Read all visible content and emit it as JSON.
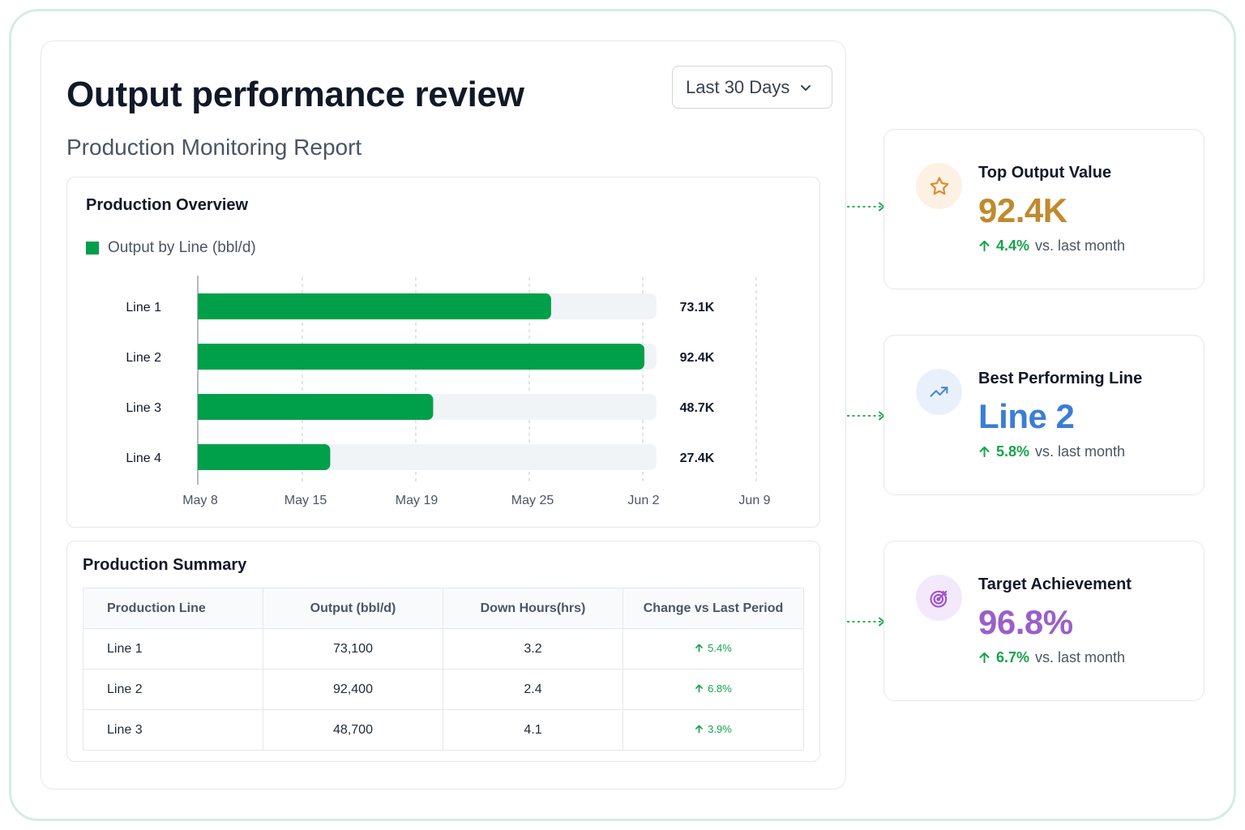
{
  "header": {
    "title": "Output performance review",
    "subtitle": "Production Monitoring Report",
    "range_select": "Last 30 Days"
  },
  "overview": {
    "title": "Production Overview",
    "legend_label": "Output by Line (bbl/d)",
    "bar_color": "#00a04a",
    "track_color": "#f1f4f7"
  },
  "chart_data": {
    "type": "bar",
    "orientation": "horizontal",
    "categories": [
      "Line 1",
      "Line 2",
      "Line 3",
      "Line 4"
    ],
    "values": [
      73.1,
      92.4,
      48.7,
      27.4
    ],
    "value_labels": [
      "73.1K",
      "92.4K",
      "48.7K",
      "27.4K"
    ],
    "x_tick_labels": [
      "May 8",
      "May 15",
      "May 19",
      "May 25",
      "Jun 2",
      "Jun 9"
    ],
    "max_value": 92.4,
    "series": [
      {
        "name": "Output by Line (bbl/d)",
        "values": [
          73.1,
          92.4,
          48.7,
          27.4
        ]
      }
    ],
    "grid": true,
    "legend_position": "top-left"
  },
  "summary": {
    "title": "Production Summary",
    "columns": [
      "Production Line",
      "Output (bbl/d)",
      "Down Hours(hrs)",
      "Change vs Last Period"
    ],
    "rows": [
      {
        "line": "Line 1",
        "output": "73,100",
        "down": "3.2",
        "change": "5.4%"
      },
      {
        "line": "Line 2",
        "output": "92,400",
        "down": "2.4",
        "change": "6.8%"
      },
      {
        "line": "Line 3",
        "output": "48,700",
        "down": "4.1",
        "change": "3.9%"
      }
    ]
  },
  "kpis": [
    {
      "label": "Top Output Value",
      "value": "92.4K",
      "delta": "4.4%",
      "suffix": "vs. last month",
      "icon": "star-icon",
      "color": "#c08a2e",
      "icon_bg": "#fdf1e4",
      "icon_color": "#e2882c"
    },
    {
      "label": "Best Performing Line",
      "value": "Line 2",
      "delta": "5.8%",
      "suffix": "vs. last month",
      "icon": "trending-up-icon",
      "color": "#3b7dd8",
      "icon_bg": "#e8f1fb",
      "icon_color": "#4a86d6"
    },
    {
      "label": "Target Achievement",
      "value": "96.8%",
      "delta": "6.7%",
      "suffix": "vs. last month",
      "icon": "target-icon",
      "color": "#9a5fc9",
      "icon_bg": "#f3e9fb",
      "icon_color": "#a04fd0"
    }
  ],
  "colors": {
    "accent_green": "#16a34a",
    "frame_border": "#d5ece3"
  }
}
